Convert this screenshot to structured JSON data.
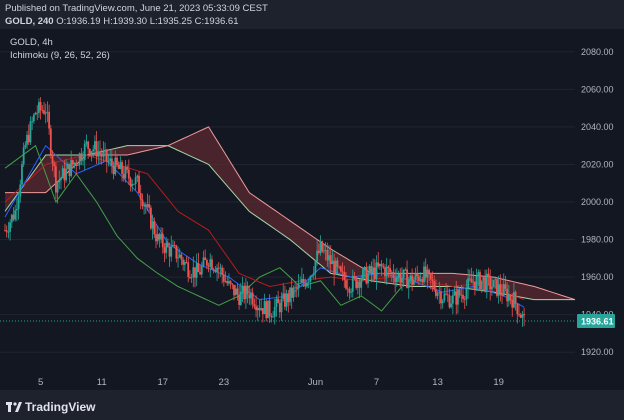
{
  "header": {
    "published": "Published on TradingView.com, June 21, 2023 05:33:09 CEST",
    "symbol": "GOLD, 240",
    "o_label": "O:",
    "o_value": "1936.19",
    "h_label": "H:",
    "h_value": "1939.30",
    "l_label": "L:",
    "l_value": "1935.25",
    "c_label": "C:",
    "c_value": "1936.61"
  },
  "legend": {
    "symbol": "GOLD, 4h",
    "indicator": "Ichimoku (9, 26, 52, 26)"
  },
  "price_axis": {
    "ticks": [
      "2080.00",
      "2060.00",
      "2040.00",
      "2020.00",
      "2000.00",
      "1980.00",
      "1960.00",
      "1940.00",
      "1920.00"
    ]
  },
  "time_axis": {
    "ticks": [
      "5",
      "11",
      "17",
      "23",
      "Jun",
      "7",
      "13",
      "19"
    ]
  },
  "last_price": {
    "value": "1936.61",
    "color": "#26a69a"
  },
  "footer": {
    "brand": "TradingView"
  },
  "colors": {
    "up": "#26a69a",
    "down": "#ef5350",
    "conversion": "#2962ff",
    "base": "#b71c1c",
    "lagging": "#43a047",
    "span_a": "#a5d6a7",
    "span_b": "#ef9a9a",
    "cloud_bear": "#5c2a30"
  },
  "chart_data": {
    "type": "candlestick",
    "symbol": "GOLD",
    "timeframe": "4h",
    "indicator": "Ichimoku (9, 26, 52, 26)",
    "ylim": [
      1910,
      2090
    ],
    "x_ticks": [
      "5",
      "11",
      "17",
      "23",
      "Jun",
      "7",
      "13",
      "19"
    ],
    "last_close": 1936.61,
    "last_bar": {
      "open": 1936.19,
      "high": 1939.3,
      "low": 1935.25,
      "close": 1936.61
    },
    "price_path": [
      {
        "day": 1,
        "price": 1985
      },
      {
        "day": 2,
        "price": 1995
      },
      {
        "day": 3,
        "price": 2030
      },
      {
        "day": 4,
        "price": 2048
      },
      {
        "day": 5,
        "price": 2050
      },
      {
        "day": 6,
        "price": 2010
      },
      {
        "day": 7,
        "price": 2016
      },
      {
        "day": 8,
        "price": 2022
      },
      {
        "day": 9,
        "price": 2030
      },
      {
        "day": 10,
        "price": 2028
      },
      {
        "day": 11,
        "price": 2022
      },
      {
        "day": 12,
        "price": 2018
      },
      {
        "day": 13,
        "price": 2014
      },
      {
        "day": 14,
        "price": 2010
      },
      {
        "day": 15,
        "price": 1995
      },
      {
        "day": 16,
        "price": 1980
      },
      {
        "day": 17,
        "price": 1975
      },
      {
        "day": 18,
        "price": 1972
      },
      {
        "day": 19,
        "price": 1965
      },
      {
        "day": 20,
        "price": 1962
      },
      {
        "day": 21,
        "price": 1970
      },
      {
        "day": 22,
        "price": 1965
      },
      {
        "day": 23,
        "price": 1955
      },
      {
        "day": 24,
        "price": 1950
      },
      {
        "day": 25,
        "price": 1952
      },
      {
        "day": 26,
        "price": 1945
      },
      {
        "day": 27,
        "price": 1942
      },
      {
        "day": 28,
        "price": 1945
      },
      {
        "day": 29,
        "price": 1950
      },
      {
        "day": 30,
        "price": 1955
      },
      {
        "day": 31,
        "price": 1962
      },
      {
        "day": 32,
        "price": 1975
      },
      {
        "day": 33,
        "price": 1968
      },
      {
        "day": 34,
        "price": 1960
      },
      {
        "day": 35,
        "price": 1956
      },
      {
        "day": 36,
        "price": 1960
      },
      {
        "day": 37,
        "price": 1962
      },
      {
        "day": 38,
        "price": 1965
      },
      {
        "day": 39,
        "price": 1962
      },
      {
        "day": 40,
        "price": 1960
      },
      {
        "day": 41,
        "price": 1958
      },
      {
        "day": 42,
        "price": 1962
      },
      {
        "day": 43,
        "price": 1956
      },
      {
        "day": 44,
        "price": 1950
      },
      {
        "day": 45,
        "price": 1948
      },
      {
        "day": 46,
        "price": 1952
      },
      {
        "day": 47,
        "price": 1958
      },
      {
        "day": 48,
        "price": 1958
      },
      {
        "day": 49,
        "price": 1955
      },
      {
        "day": 50,
        "price": 1952
      },
      {
        "day": 51,
        "price": 1948
      },
      {
        "day": 52,
        "price": 1936.61
      }
    ],
    "tenkan": [
      {
        "day": 1,
        "price": 1992
      },
      {
        "day": 5,
        "price": 2030
      },
      {
        "day": 8,
        "price": 2015
      },
      {
        "day": 11,
        "price": 2022
      },
      {
        "day": 14,
        "price": 2005
      },
      {
        "day": 17,
        "price": 1978
      },
      {
        "day": 20,
        "price": 1967
      },
      {
        "day": 23,
        "price": 1960
      },
      {
        "day": 26,
        "price": 1948
      },
      {
        "day": 29,
        "price": 1950
      },
      {
        "day": 32,
        "price": 1965
      },
      {
        "day": 35,
        "price": 1960
      },
      {
        "day": 38,
        "price": 1962
      },
      {
        "day": 41,
        "price": 1958
      },
      {
        "day": 44,
        "price": 1952
      },
      {
        "day": 47,
        "price": 1955
      },
      {
        "day": 50,
        "price": 1950
      },
      {
        "day": 52,
        "price": 1944
      }
    ],
    "kijun": [
      {
        "day": 1,
        "price": 2000
      },
      {
        "day": 5,
        "price": 2020
      },
      {
        "day": 9,
        "price": 2025
      },
      {
        "day": 12,
        "price": 2020
      },
      {
        "day": 15,
        "price": 2015
      },
      {
        "day": 18,
        "price": 1995
      },
      {
        "day": 21,
        "price": 1985
      },
      {
        "day": 24,
        "price": 1962
      },
      {
        "day": 27,
        "price": 1955
      },
      {
        "day": 30,
        "price": 1958
      },
      {
        "day": 33,
        "price": 1960
      },
      {
        "day": 36,
        "price": 1958
      },
      {
        "day": 39,
        "price": 1960
      },
      {
        "day": 42,
        "price": 1958
      },
      {
        "day": 45,
        "price": 1955
      },
      {
        "day": 48,
        "price": 1957
      },
      {
        "day": 51,
        "price": 1950
      },
      {
        "day": 52,
        "price": 1948
      }
    ],
    "chikou": [
      {
        "day": 1,
        "price": 2018
      },
      {
        "day": 4,
        "price": 2030
      },
      {
        "day": 6,
        "price": 2000
      },
      {
        "day": 8,
        "price": 2015
      },
      {
        "day": 10,
        "price": 2000
      },
      {
        "day": 12,
        "price": 1982
      },
      {
        "day": 14,
        "price": 1970
      },
      {
        "day": 16,
        "price": 1962
      },
      {
        "day": 18,
        "price": 1955
      },
      {
        "day": 20,
        "price": 1950
      },
      {
        "day": 22,
        "price": 1945
      },
      {
        "day": 24,
        "price": 1950
      },
      {
        "day": 26,
        "price": 1960
      },
      {
        "day": 28,
        "price": 1965
      },
      {
        "day": 30,
        "price": 1955
      },
      {
        "day": 32,
        "price": 1958
      },
      {
        "day": 34,
        "price": 1945
      },
      {
        "day": 36,
        "price": 1950
      },
      {
        "day": 38,
        "price": 1942
      },
      {
        "day": 40,
        "price": 1955
      }
    ],
    "senkou_a": [
      {
        "day": 1,
        "price": 1995
      },
      {
        "day": 5,
        "price": 2025
      },
      {
        "day": 9,
        "price": 2025
      },
      {
        "day": 13,
        "price": 2030
      },
      {
        "day": 17,
        "price": 2030
      },
      {
        "day": 21,
        "price": 2020
      },
      {
        "day": 25,
        "price": 1995
      },
      {
        "day": 29,
        "price": 1980
      },
      {
        "day": 33,
        "price": 1962
      },
      {
        "day": 37,
        "price": 1958
      },
      {
        "day": 41,
        "price": 1955
      },
      {
        "day": 45,
        "price": 1955
      },
      {
        "day": 49,
        "price": 1952
      },
      {
        "day": 53,
        "price": 1948
      },
      {
        "day": 57,
        "price": 1948
      }
    ],
    "senkou_b": [
      {
        "day": 1,
        "price": 2005
      },
      {
        "day": 5,
        "price": 2005
      },
      {
        "day": 9,
        "price": 2025
      },
      {
        "day": 13,
        "price": 2025
      },
      {
        "day": 17,
        "price": 2030
      },
      {
        "day": 21,
        "price": 2040
      },
      {
        "day": 25,
        "price": 2005
      },
      {
        "day": 29,
        "price": 1990
      },
      {
        "day": 33,
        "price": 1975
      },
      {
        "day": 37,
        "price": 1962
      },
      {
        "day": 41,
        "price": 1962
      },
      {
        "day": 45,
        "price": 1962
      },
      {
        "day": 49,
        "price": 1960
      },
      {
        "day": 53,
        "price": 1955
      },
      {
        "day": 57,
        "price": 1948
      }
    ]
  }
}
